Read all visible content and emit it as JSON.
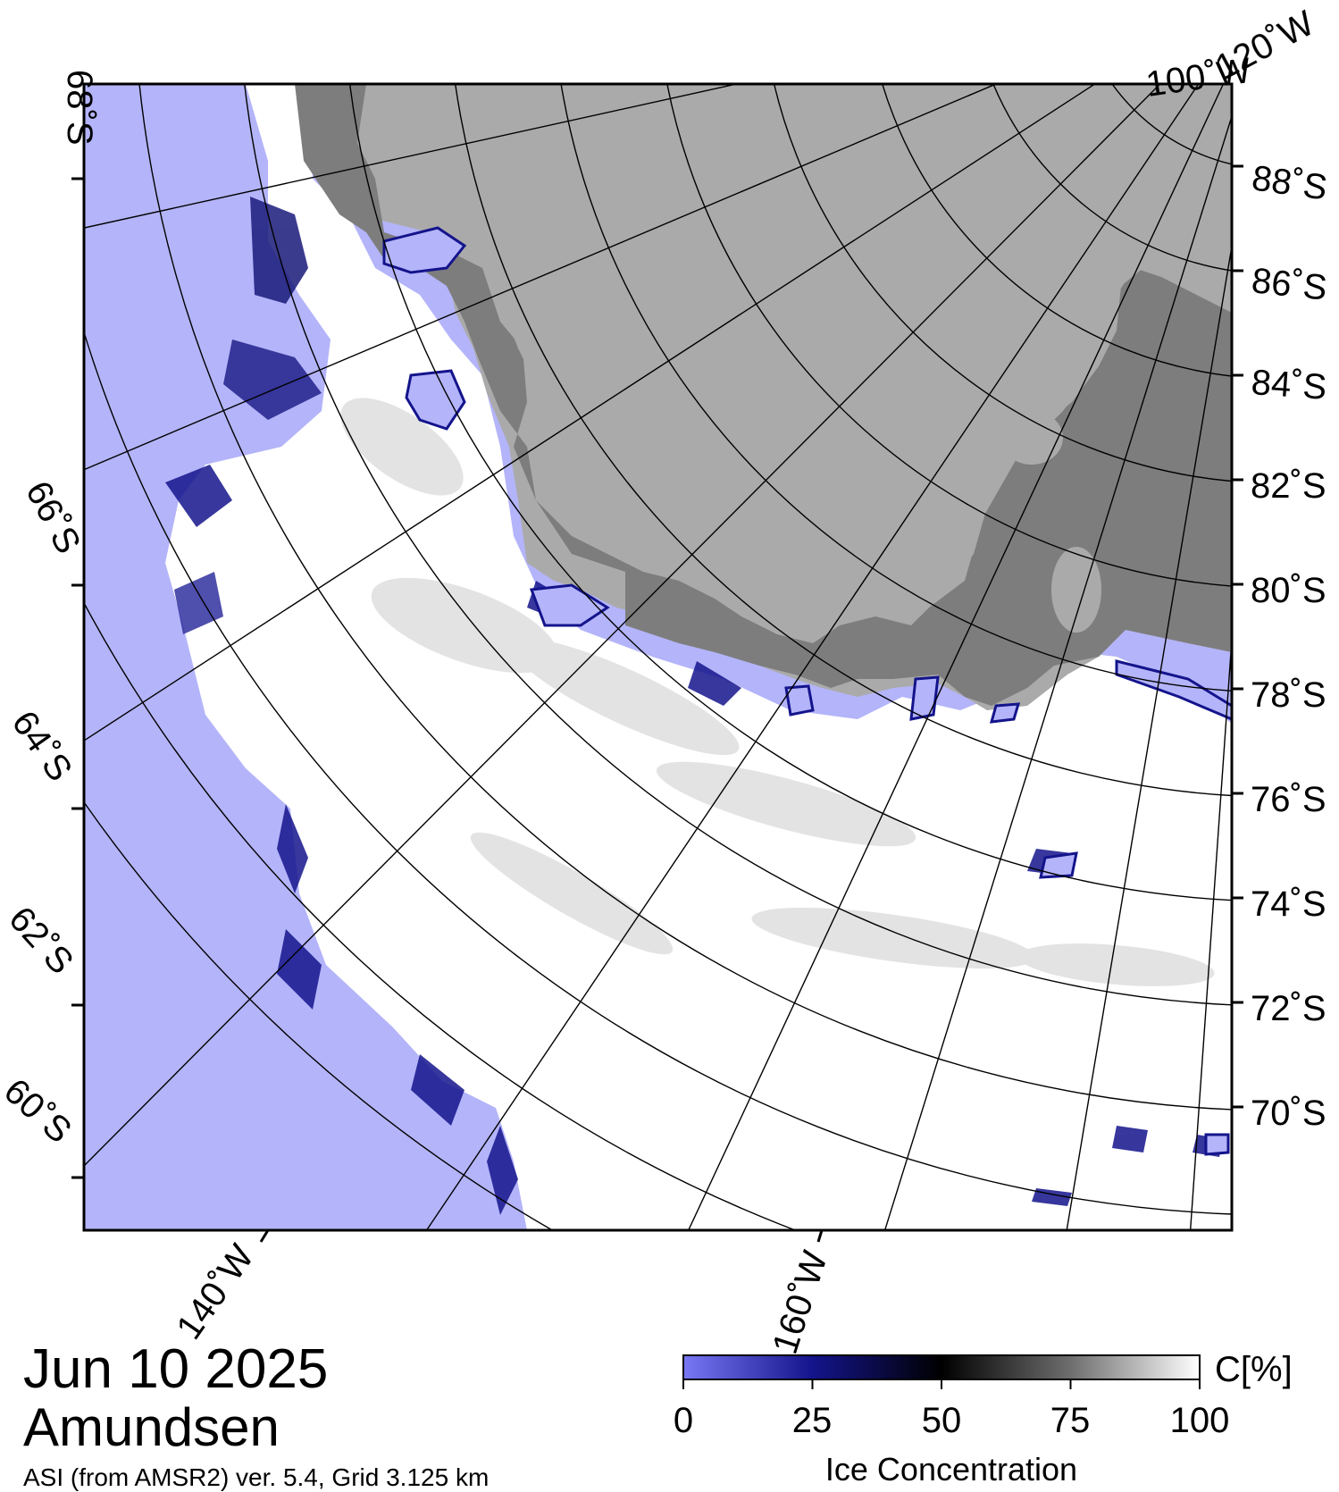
{
  "map": {
    "date": "Jun 10 2025",
    "region": "Amundsen",
    "source": "ASI (from AMSR2) ver. 5.4,  Grid 3.125 km",
    "colors": {
      "ocean": "#b4b4fa",
      "land": "#aaaaaa",
      "ice_shelf": "#7d7d7d",
      "ice": "#ffffff",
      "grid": "#000000"
    },
    "lat_labels_right": [
      "88˚S",
      "86˚S",
      "84˚S",
      "82˚S",
      "80˚S",
      "78˚S",
      "76˚S",
      "74˚S",
      "72˚S",
      "70˚S"
    ],
    "lat_labels_left": [
      "68˚S",
      "66˚S",
      "64˚S",
      "62˚S",
      "60˚S"
    ],
    "lon_labels_bottom": [
      "140˚W",
      "160˚W"
    ],
    "lon_labels_top": [
      "100˚W",
      "120˚W"
    ]
  },
  "colorbar": {
    "title": "Ice Concentration",
    "unit": "C[%]",
    "ticks": [
      "0",
      "25",
      "50",
      "75",
      "100"
    ],
    "stops": [
      "#7878f5",
      "#14148c",
      "#000000",
      "#6e6e6e",
      "#ffffff"
    ]
  }
}
